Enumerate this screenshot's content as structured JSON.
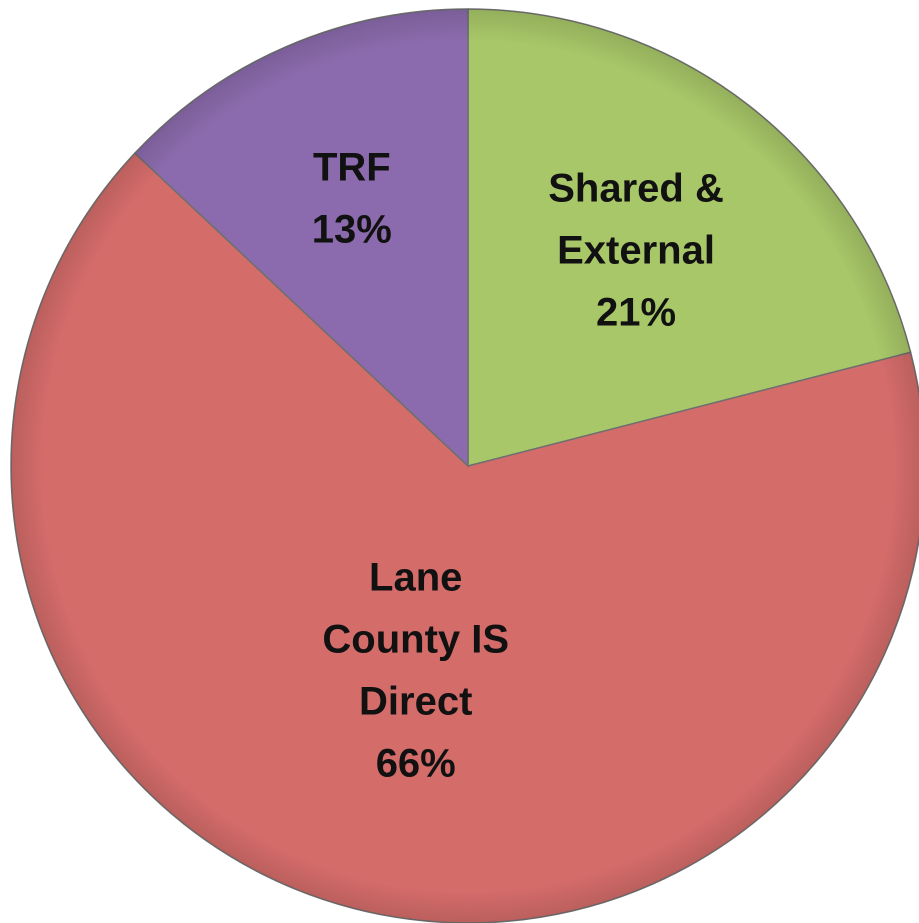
{
  "chart_data": {
    "type": "pie",
    "categories": [
      "Shared &\nExternal",
      "Lane\nCounty IS\nDirect",
      "TRF"
    ],
    "values": [
      21,
      66,
      13
    ],
    "value_labels": [
      "21%",
      "66%",
      "13%"
    ],
    "colors": [
      "#a8c768",
      "#d46c6a",
      "#8b6bad"
    ],
    "start_angle": 0,
    "direction": "clockwise"
  }
}
